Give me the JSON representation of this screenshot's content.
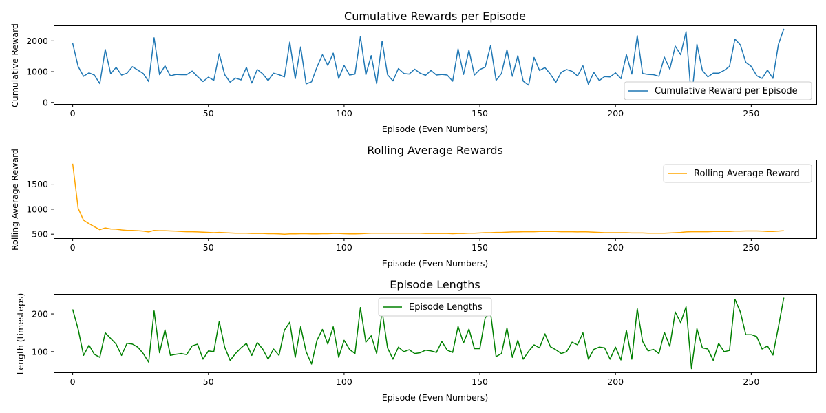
{
  "chart_data": [
    {
      "type": "line",
      "title": "Cumulative Rewards per Episode",
      "xlabel": "Episode (Even Numbers)",
      "ylabel": "Cumulative Reward",
      "xlim": [
        -7,
        274
      ],
      "ylim": [
        -50,
        2500
      ],
      "xticks": [
        0,
        50,
        100,
        150,
        200,
        250
      ],
      "yticks": [
        0,
        1000,
        2000
      ],
      "grid": false,
      "legend_position": "lower-right",
      "series": [
        {
          "name": "Cumulative Reward per Episode",
          "color": "#1f77b4",
          "x": [
            0,
            2,
            4,
            6,
            8,
            10,
            12,
            14,
            16,
            18,
            20,
            22,
            24,
            26,
            28,
            30,
            32,
            34,
            36,
            38,
            40,
            42,
            44,
            46,
            48,
            50,
            52,
            54,
            56,
            58,
            60,
            62,
            64,
            66,
            68,
            70,
            72,
            74,
            76,
            78,
            80,
            82,
            84,
            86,
            88,
            90,
            92,
            94,
            96,
            98,
            100,
            102,
            104,
            106,
            108,
            110,
            112,
            114,
            116,
            118,
            120,
            122,
            124,
            126,
            128,
            130,
            132,
            134,
            136,
            138,
            140,
            142,
            144,
            146,
            148,
            150,
            152,
            154,
            156,
            158,
            160,
            162,
            164,
            166,
            168,
            170,
            172,
            174,
            176,
            178,
            180,
            182,
            184,
            186,
            188,
            190,
            192,
            194,
            196,
            198,
            200,
            202,
            204,
            206,
            208,
            210,
            212,
            214,
            216,
            218,
            220,
            222,
            224,
            226,
            228,
            230,
            232,
            234,
            236,
            238,
            240,
            242,
            244,
            246,
            248,
            250,
            252,
            254,
            256,
            258,
            260,
            262
          ],
          "y": [
            1920,
            1170,
            850,
            960,
            890,
            610,
            1720,
            930,
            1140,
            890,
            950,
            1160,
            1050,
            940,
            680,
            2100,
            900,
            1190,
            860,
            910,
            900,
            900,
            1020,
            840,
            680,
            820,
            720,
            1580,
            900,
            660,
            790,
            730,
            1140,
            630,
            1070,
            930,
            710,
            950,
            900,
            830,
            1960,
            770,
            1800,
            600,
            670,
            1150,
            1550,
            1200,
            1600,
            780,
            1200,
            890,
            920,
            2140,
            900,
            1520,
            610,
            1990,
            900,
            700,
            1100,
            940,
            920,
            1080,
            950,
            880,
            1040,
            890,
            910,
            890,
            690,
            1740,
            910,
            1700,
            890,
            1070,
            1150,
            1850,
            720,
            940,
            1710,
            850,
            1520,
            690,
            560,
            1460,
            1040,
            1130,
            920,
            650,
            980,
            1070,
            1010,
            860,
            1190,
            590,
            980,
            710,
            840,
            830,
            960,
            770,
            1550,
            920,
            2170,
            940,
            910,
            900,
            850,
            1470,
            1080,
            1830,
            1550,
            2300,
            90,
            1890,
            1040,
            830,
            950,
            950,
            1040,
            1170,
            2060,
            1870,
            1300,
            1170,
            870,
            780,
            1050,
            780,
            1880,
            2390
          ]
        }
      ]
    },
    {
      "type": "line",
      "title": "Rolling Average Rewards",
      "xlabel": "Episode (Even Numbers)",
      "ylabel": "Rolling Average Reward",
      "xlim": [
        -7,
        274
      ],
      "ylim": [
        420,
        1990
      ],
      "xticks": [
        0,
        50,
        100,
        150,
        200,
        250
      ],
      "yticks": [
        500,
        1000,
        1500
      ],
      "grid": false,
      "legend_position": "upper-right",
      "series": [
        {
          "name": "Rolling Average Reward",
          "color": "#ffa500",
          "x": [
            0,
            2,
            4,
            6,
            8,
            10,
            12,
            14,
            16,
            18,
            20,
            22,
            24,
            26,
            28,
            30,
            32,
            34,
            36,
            38,
            40,
            42,
            44,
            46,
            48,
            50,
            52,
            54,
            56,
            58,
            60,
            62,
            64,
            66,
            68,
            70,
            72,
            74,
            76,
            78,
            80,
            82,
            84,
            86,
            88,
            90,
            92,
            94,
            96,
            98,
            100,
            102,
            104,
            106,
            108,
            110,
            112,
            114,
            116,
            118,
            120,
            122,
            124,
            126,
            128,
            130,
            132,
            134,
            136,
            138,
            140,
            142,
            144,
            146,
            148,
            150,
            152,
            154,
            156,
            158,
            160,
            162,
            164,
            166,
            168,
            170,
            172,
            174,
            176,
            178,
            180,
            182,
            184,
            186,
            188,
            190,
            192,
            194,
            196,
            198,
            200,
            202,
            204,
            206,
            208,
            210,
            212,
            214,
            216,
            218,
            220,
            222,
            224,
            226,
            228,
            230,
            232,
            234,
            236,
            238,
            240,
            242,
            244,
            246,
            248,
            250,
            252,
            254,
            256,
            258,
            260,
            262
          ],
          "y": [
            1910,
            1020,
            780,
            710,
            650,
            590,
            625,
            605,
            600,
            585,
            575,
            575,
            570,
            560,
            545,
            575,
            570,
            570,
            565,
            560,
            555,
            550,
            550,
            545,
            540,
            535,
            530,
            535,
            530,
            525,
            520,
            520,
            520,
            515,
            515,
            515,
            510,
            510,
            505,
            500,
            505,
            505,
            510,
            510,
            505,
            505,
            510,
            510,
            515,
            515,
            510,
            505,
            505,
            510,
            515,
            520,
            520,
            520,
            520,
            520,
            520,
            520,
            520,
            520,
            520,
            515,
            515,
            515,
            515,
            515,
            510,
            515,
            515,
            520,
            520,
            525,
            530,
            530,
            535,
            535,
            540,
            545,
            545,
            550,
            550,
            550,
            555,
            555,
            555,
            555,
            550,
            550,
            550,
            545,
            550,
            545,
            540,
            535,
            530,
            530,
            530,
            530,
            530,
            525,
            525,
            525,
            520,
            520,
            520,
            520,
            525,
            530,
            535,
            545,
            550,
            550,
            550,
            550,
            555,
            555,
            555,
            555,
            560,
            560,
            565,
            565,
            565,
            560,
            555,
            555,
            560,
            570
          ]
        }
      ]
    },
    {
      "type": "line",
      "title": "Episode Lengths",
      "xlabel": "Episode (Even Numbers)",
      "ylabel": "Length (timesteps)",
      "xlim": [
        -7,
        274
      ],
      "ylim": [
        45,
        253
      ],
      "xticks": [
        0,
        50,
        100,
        150,
        200,
        250
      ],
      "yticks": [
        100,
        200
      ],
      "grid": false,
      "legend_position": "upper-center",
      "series": [
        {
          "name": "Episode Lengths",
          "color": "#008000",
          "x": [
            0,
            2,
            4,
            6,
            8,
            10,
            12,
            14,
            16,
            18,
            20,
            22,
            24,
            26,
            28,
            30,
            32,
            34,
            36,
            38,
            40,
            42,
            44,
            46,
            48,
            50,
            52,
            54,
            56,
            58,
            60,
            62,
            64,
            66,
            68,
            70,
            72,
            74,
            76,
            78,
            80,
            82,
            84,
            86,
            88,
            90,
            92,
            94,
            96,
            98,
            100,
            102,
            104,
            106,
            108,
            110,
            112,
            114,
            116,
            118,
            120,
            122,
            124,
            126,
            128,
            130,
            132,
            134,
            136,
            138,
            140,
            142,
            144,
            146,
            148,
            150,
            152,
            154,
            156,
            158,
            160,
            162,
            164,
            166,
            168,
            170,
            172,
            174,
            176,
            178,
            180,
            182,
            184,
            186,
            188,
            190,
            192,
            194,
            196,
            198,
            200,
            202,
            204,
            206,
            208,
            210,
            212,
            214,
            216,
            218,
            220,
            222,
            224,
            226,
            228,
            230,
            232,
            234,
            236,
            238,
            240,
            242,
            244,
            246,
            248,
            250,
            252,
            254,
            256,
            258,
            260,
            262
          ],
          "y": [
            212,
            160,
            90,
            117,
            93,
            85,
            150,
            135,
            120,
            90,
            122,
            120,
            112,
            95,
            72,
            208,
            97,
            158,
            90,
            93,
            95,
            92,
            115,
            120,
            80,
            102,
            100,
            180,
            112,
            77,
            95,
            110,
            122,
            90,
            124,
            107,
            80,
            107,
            90,
            157,
            178,
            85,
            166,
            100,
            67,
            130,
            159,
            120,
            166,
            85,
            130,
            106,
            95,
            217,
            125,
            142,
            95,
            208,
            110,
            80,
            112,
            100,
            105,
            95,
            97,
            104,
            102,
            98,
            127,
            104,
            98,
            167,
            123,
            160,
            108,
            108,
            190,
            202,
            87,
            95,
            163,
            85,
            130,
            80,
            101,
            118,
            110,
            147,
            113,
            105,
            95,
            100,
            125,
            118,
            150,
            80,
            106,
            112,
            110,
            80,
            112,
            78,
            156,
            80,
            214,
            127,
            102,
            106,
            95,
            151,
            114,
            205,
            177,
            219,
            55,
            161,
            110,
            107,
            77,
            122,
            100,
            103,
            239,
            205,
            145,
            145,
            140,
            107,
            115,
            91,
            165,
            243
          ]
        }
      ]
    }
  ]
}
